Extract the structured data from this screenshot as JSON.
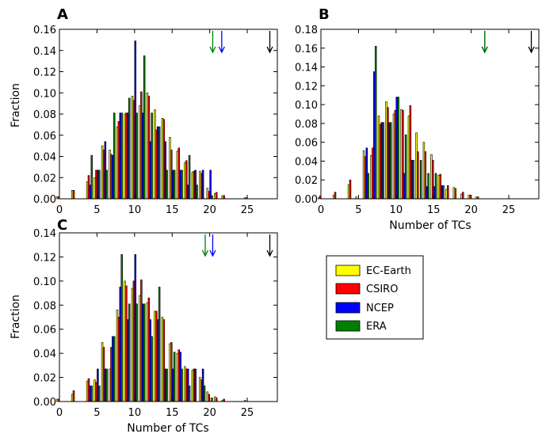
{
  "colors": {
    "EC-Earth": "#ffff00",
    "CSIRO": "#ff0000",
    "NCEP": "#0000ff",
    "ERA": "#008000",
    "observed_arrow": "#000000"
  },
  "legend": {
    "entries": [
      "EC-Earth",
      "CSIRO",
      "NCEP",
      "ERA"
    ],
    "placement": "right of panel C"
  },
  "chart_data": [
    {
      "panel": "A",
      "type": "bar",
      "title": "",
      "xlabel": "",
      "ylabel": "Fraction",
      "xlim": [
        0,
        29
      ],
      "ylim": [
        0,
        0.16
      ],
      "xticks": [
        0,
        5,
        10,
        15,
        20,
        25
      ],
      "yticks": [
        "0.00",
        "0.02",
        "0.04",
        "0.06",
        "0.08",
        "0.10",
        "0.12",
        "0.14",
        "0.16"
      ],
      "x": [
        0,
        1,
        2,
        3,
        4,
        5,
        6,
        7,
        8,
        9,
        10,
        11,
        12,
        13,
        14,
        15,
        16,
        17,
        18,
        19,
        20,
        21,
        22,
        23,
        24,
        25,
        26,
        27,
        28
      ],
      "series": [
        {
          "name": "EC-Earth",
          "values": [
            0.002,
            0,
            0.008,
            0,
            0.016,
            0.02,
            0.05,
            0.046,
            0.068,
            0.08,
            0.097,
            0.088,
            0.1,
            0.084,
            0.076,
            0.058,
            0.045,
            0.034,
            0.025,
            0.026,
            0.01,
            0.005,
            0.003,
            0,
            0,
            0.001,
            0,
            0,
            0
          ]
        },
        {
          "name": "CSIRO",
          "values": [
            0.002,
            0,
            0.008,
            0,
            0.022,
            0.027,
            0.046,
            0.042,
            0.073,
            0.081,
            0.093,
            0.101,
            0.097,
            0.065,
            0.075,
            0.046,
            0.048,
            0.036,
            0.026,
            0.024,
            0.007,
            0.006,
            0.003,
            0,
            0,
            0.001,
            0,
            0,
            0
          ]
        },
        {
          "name": "NCEP",
          "values": [
            0,
            0,
            0,
            0,
            0.013,
            0.027,
            0.054,
            0.041,
            0.081,
            0.081,
            0.149,
            0.081,
            0.054,
            0.068,
            0.054,
            0.027,
            0.027,
            0.013,
            0.027,
            0.027,
            0.027,
            0,
            0,
            0,
            0,
            0,
            0,
            0,
            0
          ]
        },
        {
          "name": "ERA",
          "values": [
            0,
            0,
            0,
            0,
            0.041,
            0.027,
            0.027,
            0.081,
            0.081,
            0.095,
            0.081,
            0.135,
            0.081,
            0.068,
            0.027,
            0.027,
            0.027,
            0.041,
            0.013,
            0,
            0.003,
            0,
            0,
            0,
            0,
            0,
            0,
            0,
            0
          ]
        }
      ],
      "arrows": [
        {
          "series": "ERA",
          "x": 20.4
        },
        {
          "series": "NCEP",
          "x": 21.6
        },
        {
          "series": "observed",
          "x": 28.0
        }
      ]
    },
    {
      "panel": "B",
      "type": "bar",
      "title": "",
      "xlabel": "Number of TCs",
      "ylabel": "",
      "xlim": [
        0,
        29
      ],
      "ylim": [
        0,
        0.18
      ],
      "xticks": [
        0,
        5,
        10,
        15,
        20,
        25
      ],
      "yticks": [
        "0.00",
        "0.02",
        "0.04",
        "0.06",
        "0.08",
        "0.10",
        "0.12",
        "0.14",
        "0.16",
        "0.18"
      ],
      "x": [
        0,
        1,
        2,
        3,
        4,
        5,
        6,
        7,
        8,
        9,
        10,
        11,
        12,
        13,
        14,
        15,
        16,
        17,
        18,
        19,
        20,
        21,
        22,
        23,
        24,
        25,
        26,
        27,
        28
      ],
      "series": [
        {
          "name": "EC-Earth",
          "values": [
            0.001,
            0,
            0.004,
            0,
            0.015,
            0.002,
            0.051,
            0.046,
            0.088,
            0.103,
            0.09,
            0.095,
            0.088,
            0.07,
            0.06,
            0.047,
            0.025,
            0.01,
            0.012,
            0.005,
            0.004,
            0.002,
            0,
            0,
            0,
            0,
            0,
            0,
            0
          ]
        },
        {
          "name": "CSIRO",
          "values": [
            0.003,
            0,
            0.007,
            0,
            0.02,
            0,
            0.045,
            0.054,
            0.079,
            0.097,
            0.094,
            0.094,
            0.099,
            0.05,
            0.05,
            0.041,
            0.026,
            0.014,
            0.011,
            0.007,
            0.004,
            0.002,
            0,
            0,
            0,
            0,
            0,
            0,
            0
          ]
        },
        {
          "name": "NCEP",
          "values": [
            0,
            0,
            0,
            0,
            0,
            0,
            0.054,
            0.135,
            0.081,
            0.081,
            0.108,
            0.027,
            0.041,
            0,
            0.013,
            0.013,
            0.014,
            0,
            0,
            0,
            0,
            0,
            0,
            0,
            0,
            0,
            0,
            0,
            0
          ]
        },
        {
          "name": "ERA",
          "values": [
            0,
            0,
            0,
            0,
            0,
            0,
            0.027,
            0.162,
            0.081,
            0.081,
            0.108,
            0.068,
            0.041,
            0.041,
            0.027,
            0.027,
            0.014,
            0,
            0,
            0,
            0,
            0,
            0,
            0,
            0,
            0,
            0,
            0,
            0
          ]
        }
      ],
      "arrows": [
        {
          "series": "EC-Earth",
          "x": 21.8
        },
        {
          "series": "CSIRO",
          "x": 21.8
        },
        {
          "series": "NCEP",
          "x": 21.8
        },
        {
          "series": "ERA",
          "x": 21.8
        },
        {
          "series": "observed",
          "x": 28.0
        }
      ]
    },
    {
      "panel": "C",
      "type": "bar",
      "title": "",
      "xlabel": "Number of TCs",
      "ylabel": "Fraction",
      "xlim": [
        0,
        29
      ],
      "ylim": [
        0,
        0.14
      ],
      "xticks": [
        0,
        5,
        10,
        15,
        20,
        25
      ],
      "yticks": [
        "0.00",
        "0.02",
        "0.04",
        "0.06",
        "0.08",
        "0.10",
        "0.12",
        "0.14"
      ],
      "x": [
        0,
        1,
        2,
        3,
        4,
        5,
        6,
        7,
        8,
        9,
        10,
        11,
        12,
        13,
        14,
        15,
        16,
        17,
        18,
        19,
        20,
        21,
        22,
        23,
        24,
        25,
        26,
        27,
        28
      ],
      "series": [
        {
          "name": "EC-Earth",
          "values": [
            0.002,
            0,
            0.006,
            0,
            0.017,
            0.018,
            0.049,
            0.027,
            0.076,
            0.1,
            0.094,
            0.088,
            0.082,
            0.075,
            0.07,
            0.048,
            0.04,
            0.029,
            0.026,
            0.02,
            0.008,
            0.004,
            0.001,
            0,
            0,
            0.001,
            0,
            0,
            0
          ]
        },
        {
          "name": "CSIRO",
          "values": [
            0.002,
            0,
            0.009,
            0,
            0.019,
            0.016,
            0.045,
            0.045,
            0.07,
            0.096,
            0.1,
            0.101,
            0.086,
            0.075,
            0.068,
            0.049,
            0.043,
            0.027,
            0.027,
            0.018,
            0.006,
            0.003,
            0.002,
            0,
            0,
            0,
            0,
            0,
            0
          ]
        },
        {
          "name": "NCEP",
          "values": [
            0,
            0,
            0,
            0,
            0.013,
            0.027,
            0.027,
            0.054,
            0.095,
            0.068,
            0.122,
            0.081,
            0.068,
            0.068,
            0.027,
            0.027,
            0.041,
            0.027,
            0.027,
            0.027,
            0,
            0,
            0,
            0,
            0,
            0,
            0,
            0,
            0
          ]
        },
        {
          "name": "ERA",
          "values": [
            0,
            0,
            0,
            0,
            0.013,
            0.013,
            0.027,
            0.054,
            0.122,
            0.081,
            0.081,
            0.081,
            0.054,
            0.095,
            0.027,
            0.041,
            0.027,
            0.013,
            0,
            0.013,
            0.003,
            0,
            0,
            0,
            0,
            0,
            0,
            0,
            0
          ]
        }
      ],
      "arrows": [
        {
          "series": "ERA",
          "x": 19.4
        },
        {
          "series": "NCEP",
          "x": 20.4
        },
        {
          "series": "observed",
          "x": 28.0
        }
      ]
    }
  ]
}
